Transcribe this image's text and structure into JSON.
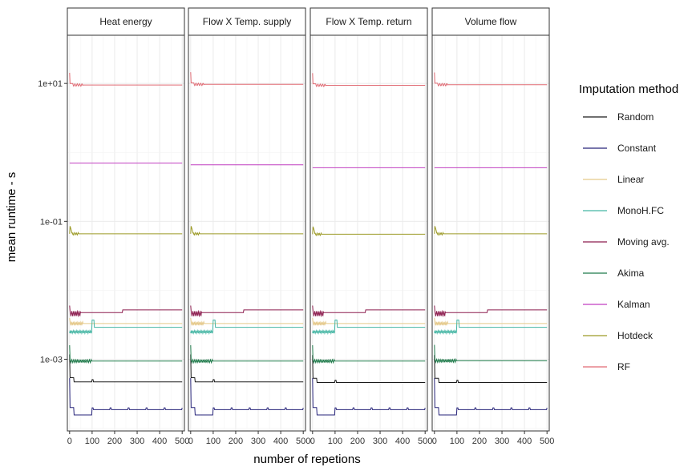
{
  "chart_data": {
    "type": "line",
    "facet_by": "variable",
    "panels": [
      "Heat energy",
      "Flow X Temp. supply",
      "Flow X Temp. return",
      "Volume flow"
    ],
    "xlabel": "number of repetions",
    "ylabel": "mean runtime - s",
    "xlim": [
      -10,
      510
    ],
    "x_ticks": [
      0,
      100,
      200,
      300,
      400,
      500
    ],
    "x_tick_labels": [
      "0",
      "100",
      "200",
      "300",
      "400",
      "500"
    ],
    "y_scale": "log10",
    "ylim": [
      9.12e-05,
      50
    ],
    "y_ticks": [
      0.001,
      0.1,
      10
    ],
    "y_tick_labels": [
      "1e-03",
      "1e-01",
      "1e+01"
    ],
    "grid": true,
    "legend_title": "Imputation method",
    "legend_position": "right",
    "series": [
      {
        "name": "Random",
        "color": "#1a1a1a",
        "values": [
          0.00047,
          0.00047,
          0.00046,
          0.00046
        ]
      },
      {
        "name": "Constant",
        "color": "#27247a",
        "values": [
          0.00019,
          0.00019,
          0.00019,
          0.00019
        ]
      },
      {
        "name": "Linear",
        "color": "#e5c98a",
        "values": [
          0.0033,
          0.0033,
          0.0033,
          0.0033
        ]
      },
      {
        "name": "MonoH.FC",
        "color": "#45b6a4",
        "values": [
          0.0029,
          0.0029,
          0.0029,
          0.0029
        ]
      },
      {
        "name": "Moving avg.",
        "color": "#8c1c4e",
        "values": [
          0.005,
          0.005,
          0.005,
          0.005
        ]
      },
      {
        "name": "Akima",
        "color": "#1e7a4a",
        "values": [
          0.00094,
          0.00094,
          0.00094,
          0.00095
        ]
      },
      {
        "name": "Kalman",
        "color": "#c03ec0",
        "values": [
          0.7,
          0.66,
          0.6,
          0.6
        ]
      },
      {
        "name": "Hotdeck",
        "color": "#9c9a26",
        "values": [
          0.066,
          0.066,
          0.065,
          0.066
        ]
      },
      {
        "name": "RF",
        "color": "#e06b74",
        "values": [
          9.5,
          9.7,
          9.4,
          9.6
        ]
      }
    ]
  }
}
